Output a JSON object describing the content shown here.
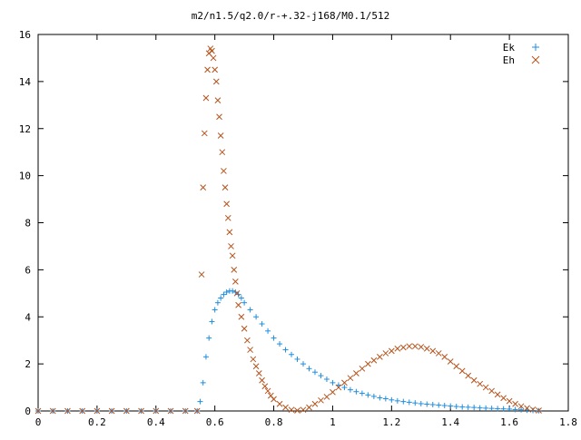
{
  "chart_data": {
    "type": "scatter",
    "title": "m2/n1.5/q2.0/r-+.32-j168/M0.1/512",
    "xlabel": "",
    "ylabel": "",
    "xlim": [
      0,
      1.8
    ],
    "ylim": [
      0,
      16
    ],
    "grid": false,
    "legend_position": "top-right",
    "x_ticks": [
      "0",
      "0.2",
      "0.4",
      "0.6",
      "0.8",
      "1",
      "1.2",
      "1.4",
      "1.6",
      "1.8"
    ],
    "y_ticks": [
      "0",
      "2",
      "4",
      "6",
      "8",
      "10",
      "12",
      "14",
      "16"
    ],
    "series": [
      {
        "name": "Ek",
        "marker": "plus",
        "color": "#1f8ee0",
        "points": [
          [
            0.0,
            0
          ],
          [
            0.05,
            0
          ],
          [
            0.1,
            0
          ],
          [
            0.15,
            0
          ],
          [
            0.2,
            0
          ],
          [
            0.25,
            0
          ],
          [
            0.3,
            0
          ],
          [
            0.35,
            0
          ],
          [
            0.4,
            0
          ],
          [
            0.45,
            0
          ],
          [
            0.5,
            0
          ],
          [
            0.54,
            0
          ],
          [
            0.55,
            0.4
          ],
          [
            0.56,
            1.2
          ],
          [
            0.57,
            2.3
          ],
          [
            0.58,
            3.1
          ],
          [
            0.59,
            3.8
          ],
          [
            0.6,
            4.3
          ],
          [
            0.61,
            4.6
          ],
          [
            0.62,
            4.8
          ],
          [
            0.63,
            4.95
          ],
          [
            0.64,
            5.05
          ],
          [
            0.65,
            5.1
          ],
          [
            0.66,
            5.1
          ],
          [
            0.67,
            5.05
          ],
          [
            0.68,
            4.95
          ],
          [
            0.69,
            4.8
          ],
          [
            0.7,
            4.6
          ],
          [
            0.72,
            4.3
          ],
          [
            0.74,
            4.0
          ],
          [
            0.76,
            3.7
          ],
          [
            0.78,
            3.4
          ],
          [
            0.8,
            3.1
          ],
          [
            0.82,
            2.85
          ],
          [
            0.84,
            2.6
          ],
          [
            0.86,
            2.4
          ],
          [
            0.88,
            2.2
          ],
          [
            0.9,
            2.0
          ],
          [
            0.92,
            1.8
          ],
          [
            0.94,
            1.65
          ],
          [
            0.96,
            1.5
          ],
          [
            0.98,
            1.35
          ],
          [
            1.0,
            1.2
          ],
          [
            1.02,
            1.1
          ],
          [
            1.04,
            1.0
          ],
          [
            1.06,
            0.9
          ],
          [
            1.08,
            0.82
          ],
          [
            1.1,
            0.75
          ],
          [
            1.12,
            0.68
          ],
          [
            1.14,
            0.62
          ],
          [
            1.16,
            0.56
          ],
          [
            1.18,
            0.52
          ],
          [
            1.2,
            0.47
          ],
          [
            1.22,
            0.43
          ],
          [
            1.24,
            0.4
          ],
          [
            1.26,
            0.37
          ],
          [
            1.28,
            0.34
          ],
          [
            1.3,
            0.31
          ],
          [
            1.32,
            0.29
          ],
          [
            1.34,
            0.27
          ],
          [
            1.36,
            0.25
          ],
          [
            1.38,
            0.23
          ],
          [
            1.4,
            0.21
          ],
          [
            1.42,
            0.19
          ],
          [
            1.44,
            0.17
          ],
          [
            1.46,
            0.16
          ],
          [
            1.48,
            0.15
          ],
          [
            1.5,
            0.13
          ],
          [
            1.52,
            0.12
          ],
          [
            1.54,
            0.11
          ],
          [
            1.56,
            0.1
          ],
          [
            1.58,
            0.09
          ],
          [
            1.6,
            0.08
          ],
          [
            1.62,
            0.06
          ],
          [
            1.64,
            0.05
          ],
          [
            1.66,
            0.03
          ],
          [
            1.68,
            0.02
          ],
          [
            1.7,
            0.01
          ]
        ]
      },
      {
        "name": "Eh",
        "marker": "cross",
        "color": "#b5521b",
        "points": [
          [
            0.0,
            0
          ],
          [
            0.05,
            0
          ],
          [
            0.1,
            0
          ],
          [
            0.15,
            0
          ],
          [
            0.2,
            0
          ],
          [
            0.25,
            0
          ],
          [
            0.3,
            0
          ],
          [
            0.35,
            0
          ],
          [
            0.4,
            0
          ],
          [
            0.45,
            0
          ],
          [
            0.5,
            0
          ],
          [
            0.54,
            0
          ],
          [
            0.555,
            5.8
          ],
          [
            0.56,
            9.5
          ],
          [
            0.565,
            11.8
          ],
          [
            0.57,
            13.3
          ],
          [
            0.575,
            14.5
          ],
          [
            0.58,
            15.2
          ],
          [
            0.585,
            15.4
          ],
          [
            0.59,
            15.3
          ],
          [
            0.595,
            15.0
          ],
          [
            0.6,
            14.5
          ],
          [
            0.605,
            14.0
          ],
          [
            0.61,
            13.2
          ],
          [
            0.615,
            12.5
          ],
          [
            0.62,
            11.7
          ],
          [
            0.625,
            11.0
          ],
          [
            0.63,
            10.2
          ],
          [
            0.635,
            9.5
          ],
          [
            0.64,
            8.8
          ],
          [
            0.645,
            8.2
          ],
          [
            0.65,
            7.6
          ],
          [
            0.655,
            7.0
          ],
          [
            0.66,
            6.6
          ],
          [
            0.665,
            6.0
          ],
          [
            0.67,
            5.5
          ],
          [
            0.675,
            5.0
          ],
          [
            0.68,
            4.5
          ],
          [
            0.69,
            4.0
          ],
          [
            0.7,
            3.5
          ],
          [
            0.71,
            3.0
          ],
          [
            0.72,
            2.6
          ],
          [
            0.73,
            2.2
          ],
          [
            0.74,
            1.9
          ],
          [
            0.75,
            1.6
          ],
          [
            0.76,
            1.3
          ],
          [
            0.77,
            1.05
          ],
          [
            0.78,
            0.85
          ],
          [
            0.79,
            0.65
          ],
          [
            0.8,
            0.5
          ],
          [
            0.82,
            0.3
          ],
          [
            0.84,
            0.15
          ],
          [
            0.86,
            0.05
          ],
          [
            0.88,
            0.02
          ],
          [
            0.9,
            0.05
          ],
          [
            0.92,
            0.15
          ],
          [
            0.94,
            0.3
          ],
          [
            0.96,
            0.45
          ],
          [
            0.98,
            0.6
          ],
          [
            1.0,
            0.8
          ],
          [
            1.02,
            1.0
          ],
          [
            1.04,
            1.2
          ],
          [
            1.06,
            1.4
          ],
          [
            1.08,
            1.6
          ],
          [
            1.1,
            1.8
          ],
          [
            1.12,
            2.0
          ],
          [
            1.14,
            2.15
          ],
          [
            1.16,
            2.3
          ],
          [
            1.18,
            2.45
          ],
          [
            1.2,
            2.55
          ],
          [
            1.22,
            2.65
          ],
          [
            1.24,
            2.7
          ],
          [
            1.26,
            2.75
          ],
          [
            1.28,
            2.75
          ],
          [
            1.3,
            2.72
          ],
          [
            1.32,
            2.65
          ],
          [
            1.34,
            2.55
          ],
          [
            1.36,
            2.45
          ],
          [
            1.38,
            2.3
          ],
          [
            1.4,
            2.1
          ],
          [
            1.42,
            1.9
          ],
          [
            1.44,
            1.7
          ],
          [
            1.46,
            1.5
          ],
          [
            1.48,
            1.3
          ],
          [
            1.5,
            1.15
          ],
          [
            1.52,
            1.0
          ],
          [
            1.54,
            0.85
          ],
          [
            1.56,
            0.7
          ],
          [
            1.58,
            0.55
          ],
          [
            1.6,
            0.42
          ],
          [
            1.62,
            0.3
          ],
          [
            1.64,
            0.2
          ],
          [
            1.66,
            0.12
          ],
          [
            1.68,
            0.06
          ],
          [
            1.7,
            0.02
          ]
        ]
      }
    ]
  }
}
